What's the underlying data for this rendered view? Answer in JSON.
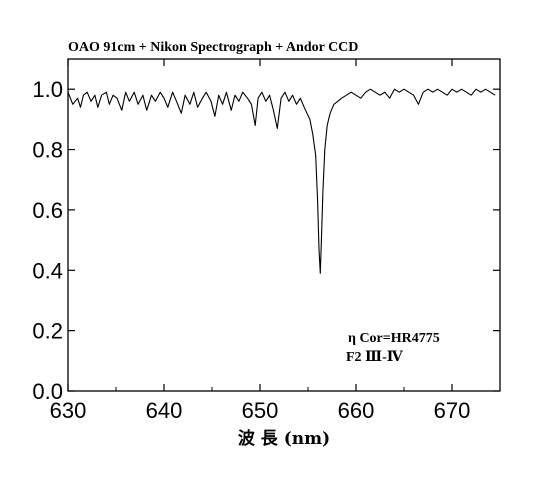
{
  "chart_data": {
    "type": "line",
    "title": "OAO 91cm + Nikon Spectrograph + Andor CCD",
    "xlabel": "波 長 (nm)",
    "ylabel": "",
    "xlim": [
      630,
      675
    ],
    "ylim": [
      0.0,
      1.1
    ],
    "grid": false,
    "xticks": [
      630,
      640,
      650,
      660,
      670
    ],
    "yticks": [
      0.0,
      0.2,
      0.4,
      0.6,
      0.8,
      1.0
    ],
    "xtick_labels": [
      "630",
      "640",
      "650",
      "660",
      "670"
    ],
    "ytick_labels": [
      "0.0",
      "0.2",
      "0.4",
      "0.6",
      "0.8",
      "1.0"
    ],
    "annotations": [
      "η Cor=HR4775",
      "F2 Ⅲ-Ⅳ"
    ],
    "series": [
      {
        "color": "#000000",
        "x": [
          630.0,
          630.5,
          631.0,
          631.3,
          631.6,
          632.0,
          632.4,
          632.8,
          633.1,
          633.5,
          634.0,
          634.3,
          634.7,
          635.1,
          635.6,
          636.0,
          636.4,
          636.9,
          637.3,
          637.8,
          638.2,
          638.7,
          639.1,
          639.6,
          640.0,
          640.4,
          640.9,
          641.3,
          641.8,
          642.2,
          642.7,
          643.1,
          643.5,
          644.0,
          644.4,
          644.9,
          645.3,
          645.7,
          646.1,
          646.5,
          647.0,
          647.4,
          647.8,
          648.2,
          648.7,
          649.1,
          649.5,
          649.8,
          650.2,
          650.6,
          651.0,
          651.4,
          651.8,
          652.2,
          652.6,
          653.0,
          653.4,
          653.8,
          654.2,
          654.6,
          654.9,
          655.2,
          655.5,
          655.8,
          656.0,
          656.15,
          656.28,
          656.4,
          656.55,
          656.75,
          657.0,
          657.3,
          657.7,
          658.1,
          658.5,
          659.0,
          659.5,
          660.0,
          660.5,
          661.0,
          661.5,
          662.0,
          662.5,
          663.0,
          663.5,
          664.0,
          664.5,
          665.0,
          665.5,
          666.0,
          666.5,
          667.0,
          667.5,
          668.0,
          668.5,
          669.0,
          669.5,
          670.0,
          670.5,
          671.0,
          671.5,
          672.0,
          672.5,
          673.0,
          673.5,
          674.0,
          674.5
        ],
        "y": [
          0.99,
          0.95,
          0.97,
          0.94,
          0.98,
          0.99,
          0.96,
          0.98,
          0.94,
          0.98,
          0.99,
          0.95,
          0.98,
          0.97,
          0.93,
          0.99,
          0.96,
          0.99,
          0.95,
          0.98,
          0.93,
          0.98,
          0.96,
          0.99,
          0.97,
          0.94,
          0.99,
          0.96,
          0.92,
          0.98,
          0.95,
          0.99,
          0.94,
          0.97,
          0.99,
          0.96,
          0.91,
          0.98,
          0.95,
          0.99,
          0.93,
          0.98,
          0.96,
          0.99,
          0.97,
          0.95,
          0.88,
          0.97,
          0.99,
          0.96,
          0.98,
          0.93,
          0.87,
          0.97,
          0.99,
          0.96,
          0.98,
          0.95,
          0.97,
          0.94,
          0.92,
          0.9,
          0.85,
          0.78,
          0.63,
          0.47,
          0.39,
          0.5,
          0.66,
          0.8,
          0.88,
          0.92,
          0.95,
          0.96,
          0.97,
          0.98,
          0.99,
          0.98,
          0.97,
          0.99,
          1.0,
          0.99,
          0.98,
          0.99,
          0.97,
          1.0,
          0.99,
          1.0,
          0.99,
          0.98,
          0.95,
          0.99,
          1.0,
          0.99,
          1.0,
          0.99,
          0.98,
          1.0,
          0.99,
          1.0,
          0.99,
          0.98,
          1.0,
          0.99,
          1.0,
          0.99,
          0.98
        ]
      }
    ]
  }
}
